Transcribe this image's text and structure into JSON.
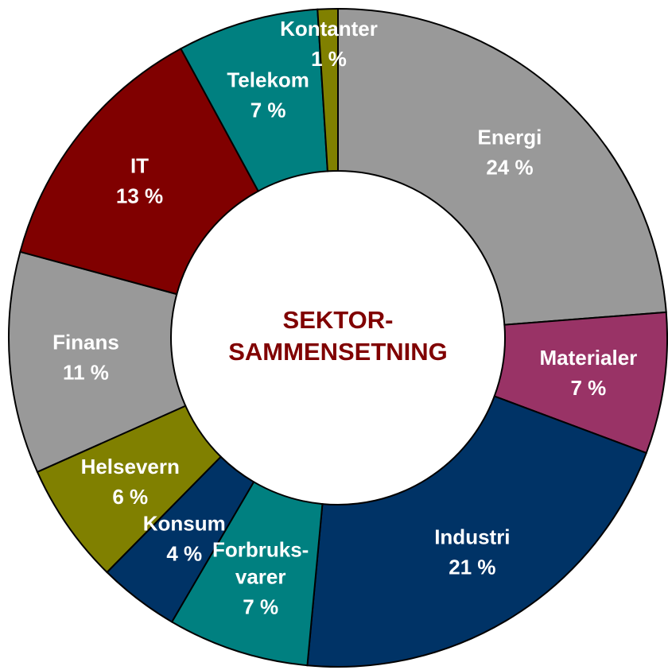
{
  "chart_data": {
    "type": "donut",
    "title": "SEKTOR-\nSAMMENSETNING",
    "categories": [
      "Energi",
      "Materialer",
      "Industri",
      "Forbruks-\nvarer",
      "Konsum",
      "Helsevern",
      "Finans",
      "IT",
      "Telekom",
      "Kontanter"
    ],
    "values": [
      24,
      7,
      21,
      7,
      4,
      6,
      11,
      13,
      7,
      1
    ],
    "value_labels": [
      "24 %",
      "7 %",
      "21 %",
      "7 %",
      "4 %",
      "6 %",
      "11 %",
      "13 %",
      "7 %",
      "1 %"
    ],
    "colors": [
      "#999999",
      "#993366",
      "#003366",
      "#008080",
      "#003366",
      "#808000",
      "#999999",
      "#800000",
      "#008080",
      "#808000"
    ]
  }
}
